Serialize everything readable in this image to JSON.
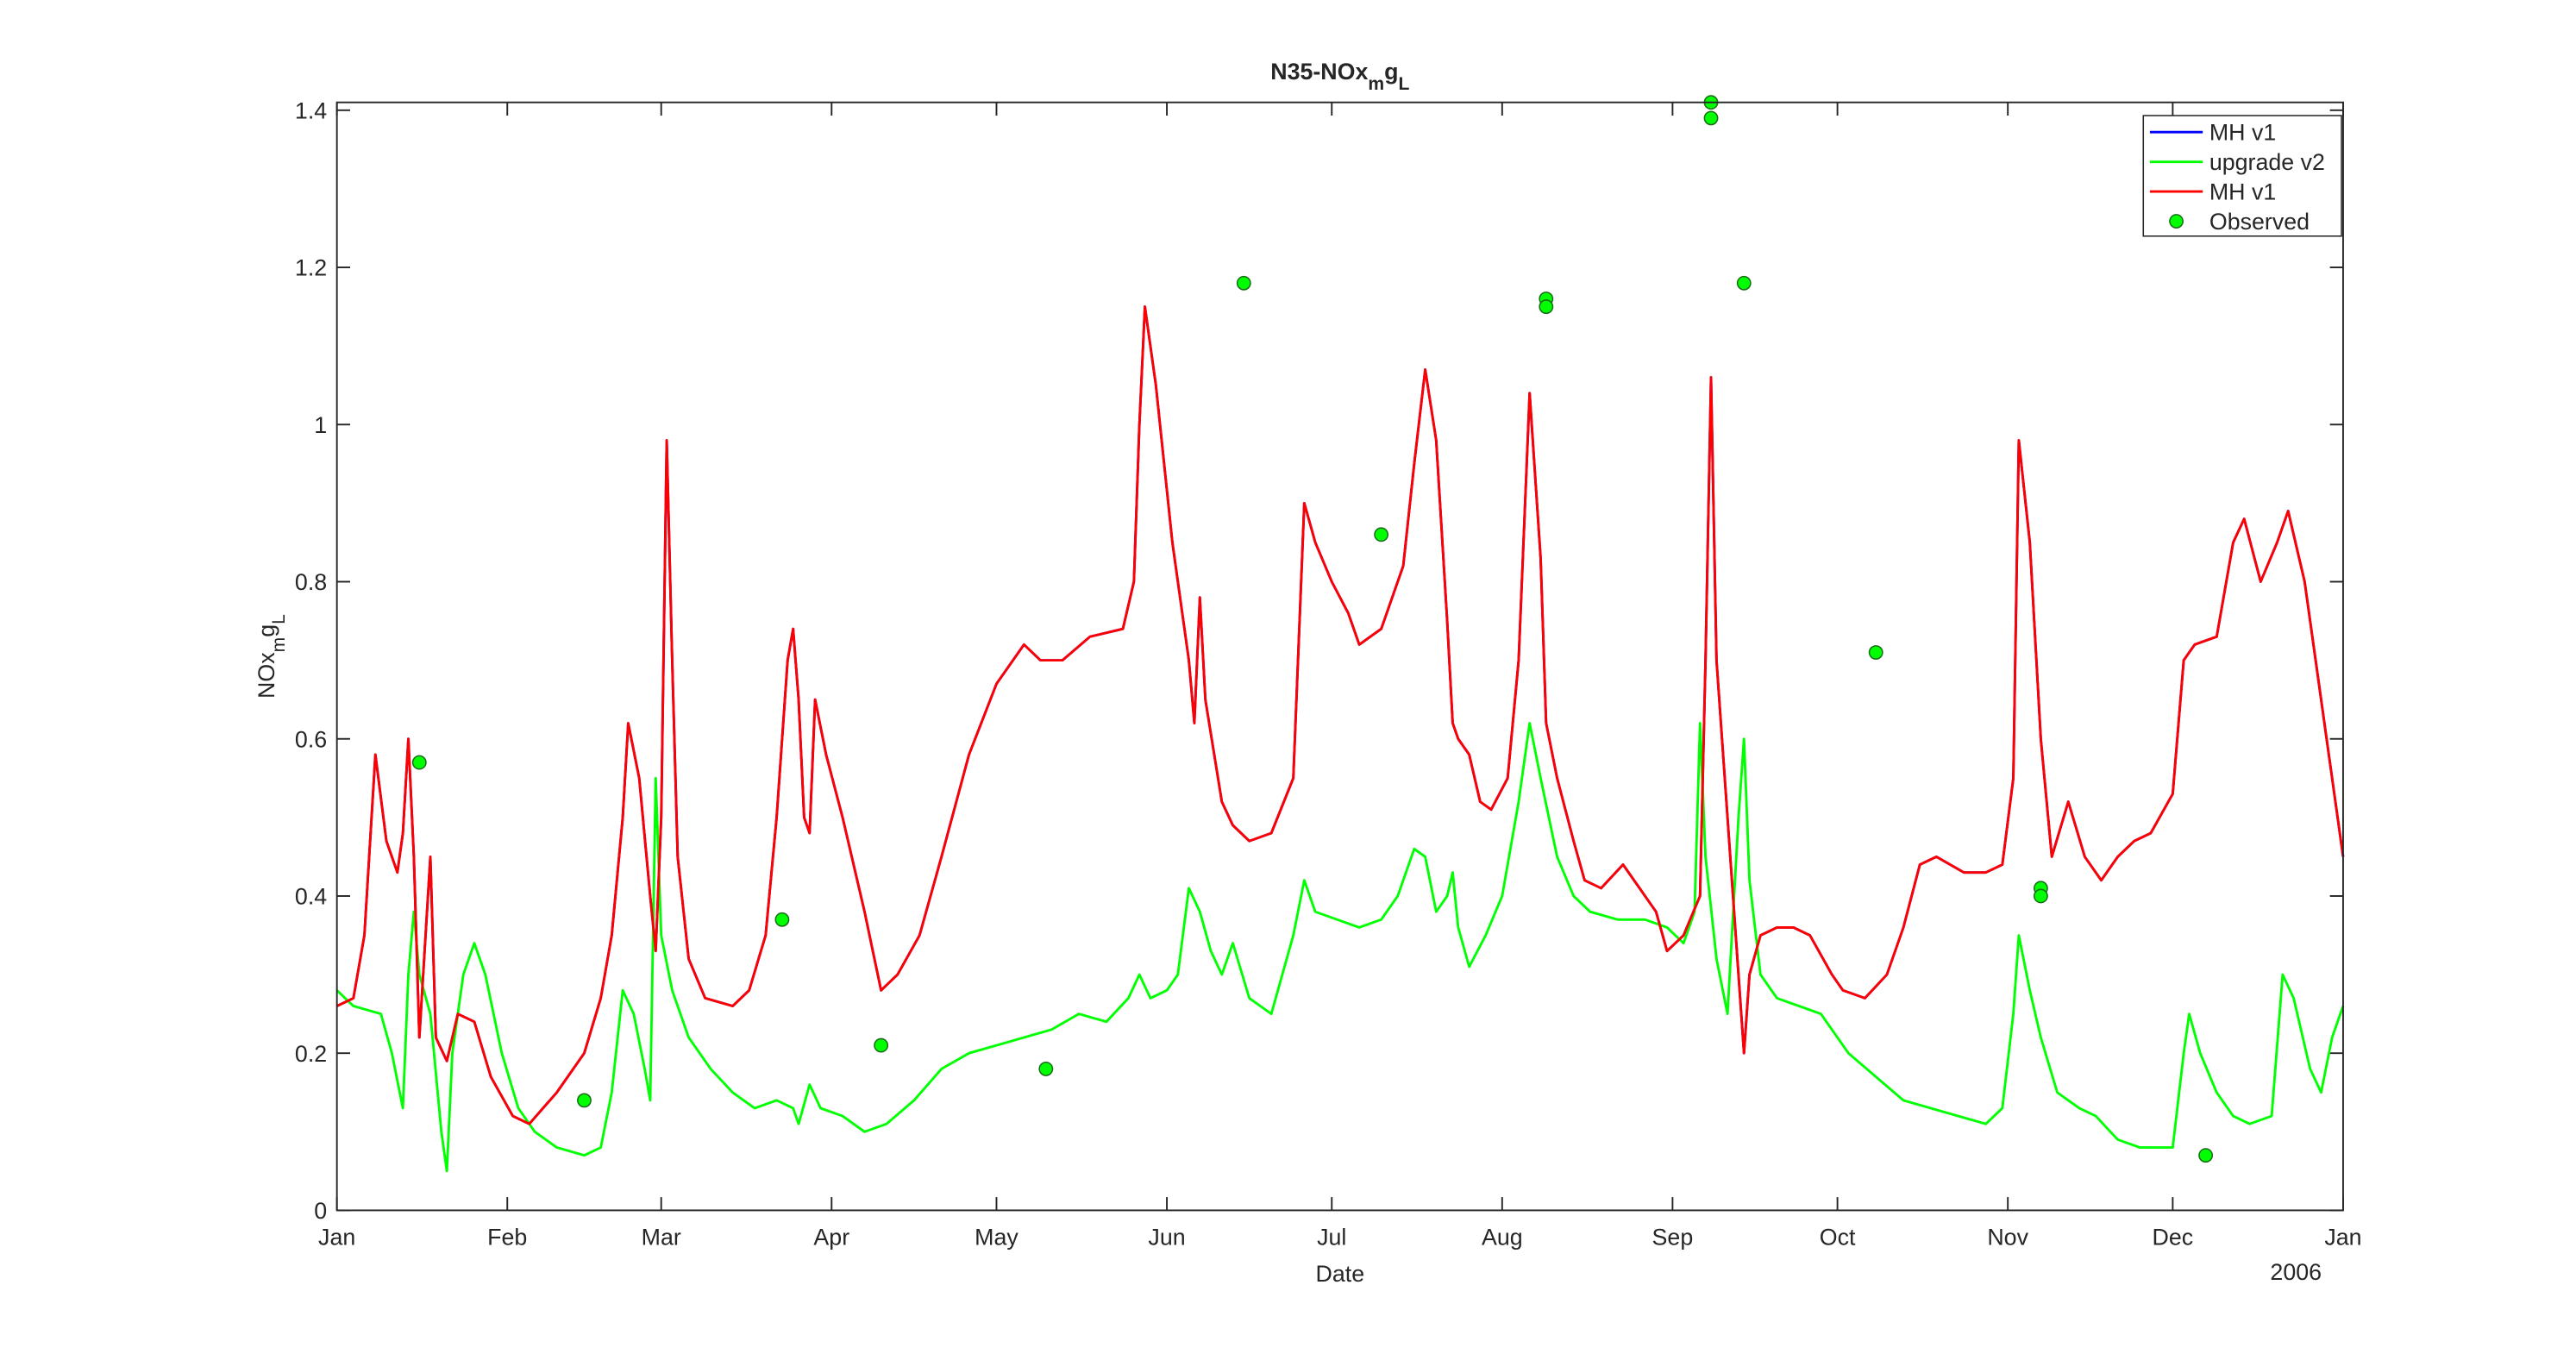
{
  "chart_data": {
    "type": "line",
    "title": [
      {
        "text": "N35-NOx"
      },
      {
        "text": "m",
        "sub": true
      },
      {
        "text": "g"
      },
      {
        "text": "L",
        "sub": true
      }
    ],
    "y_label": [
      {
        "text": "NOx"
      },
      {
        "text": "m",
        "sub": true
      },
      {
        "text": "g"
      },
      {
        "text": "L",
        "sub": true
      }
    ],
    "x_label": "Date",
    "x_year": "2006",
    "xlim": [
      0,
      365
    ],
    "xticks": [
      {
        "value": 0,
        "label": "Jan"
      },
      {
        "value": 31,
        "label": "Feb"
      },
      {
        "value": 59,
        "label": "Mar"
      },
      {
        "value": 90,
        "label": "Apr"
      },
      {
        "value": 120,
        "label": "May"
      },
      {
        "value": 151,
        "label": "Jun"
      },
      {
        "value": 181,
        "label": "Jul"
      },
      {
        "value": 212,
        "label": "Aug"
      },
      {
        "value": 243,
        "label": "Sep"
      },
      {
        "value": 273,
        "label": "Oct"
      },
      {
        "value": 304,
        "label": "Nov"
      },
      {
        "value": 334,
        "label": "Dec"
      },
      {
        "value": 365,
        "label": "Jan"
      }
    ],
    "ylim": [
      0,
      1.41
    ],
    "yticks": [
      0,
      0.2,
      0.4,
      0.6,
      0.8,
      1,
      1.2,
      1.4
    ],
    "legend": "top-right",
    "series": [
      {
        "name": "MH v1",
        "color": "#0000ff",
        "x": [
          0,
          3,
          5,
          7,
          9,
          11,
          12,
          13,
          14,
          15,
          17,
          18,
          20,
          22,
          25,
          28,
          32,
          35,
          40,
          45,
          48,
          50,
          52,
          53,
          55,
          57,
          58,
          59,
          60,
          61,
          62,
          64,
          67,
          72,
          75,
          78,
          80,
          82,
          83,
          84,
          85,
          86,
          87,
          89,
          92,
          96,
          99,
          102,
          106,
          110,
          115,
          120,
          125,
          128,
          132,
          137,
          143,
          145,
          146,
          147,
          149,
          152,
          155,
          156,
          157,
          158,
          161,
          163,
          166,
          170,
          174,
          176,
          178,
          181,
          184,
          186,
          190,
          194,
          196,
          198,
          200,
          202,
          203,
          204,
          206,
          208,
          210,
          213,
          215,
          217,
          219,
          220,
          222,
          225,
          227,
          230,
          234,
          236,
          240,
          242,
          245,
          248,
          249,
          250,
          251,
          252,
          254,
          256,
          257,
          259,
          262,
          265,
          268,
          272,
          274,
          278,
          282,
          285,
          288,
          291,
          296,
          300,
          303,
          305,
          306,
          308,
          310,
          312,
          315,
          318,
          321,
          324,
          327,
          330,
          334,
          336,
          338,
          342,
          345,
          347,
          350,
          353,
          355,
          358,
          360,
          362,
          365
        ],
        "values": [
          0.26,
          0.27,
          0.35,
          0.58,
          0.47,
          0.43,
          0.48,
          0.6,
          0.45,
          0.22,
          0.45,
          0.22,
          0.19,
          0.25,
          0.24,
          0.17,
          0.12,
          0.11,
          0.15,
          0.2,
          0.27,
          0.35,
          0.5,
          0.62,
          0.55,
          0.4,
          0.33,
          0.5,
          0.98,
          0.7,
          0.45,
          0.32,
          0.27,
          0.26,
          0.28,
          0.35,
          0.5,
          0.7,
          0.74,
          0.65,
          0.5,
          0.48,
          0.65,
          0.58,
          0.5,
          0.38,
          0.28,
          0.3,
          0.35,
          0.45,
          0.58,
          0.67,
          0.72,
          0.7,
          0.7,
          0.73,
          0.74,
          0.8,
          1.0,
          1.15,
          1.05,
          0.85,
          0.7,
          0.62,
          0.78,
          0.65,
          0.52,
          0.49,
          0.47,
          0.48,
          0.55,
          0.9,
          0.85,
          0.8,
          0.76,
          0.72,
          0.74,
          0.82,
          0.95,
          1.07,
          0.98,
          0.75,
          0.62,
          0.6,
          0.58,
          0.52,
          0.51,
          0.55,
          0.7,
          1.04,
          0.83,
          0.62,
          0.55,
          0.47,
          0.42,
          0.41,
          0.44,
          0.42,
          0.38,
          0.33,
          0.35,
          0.4,
          0.7,
          1.06,
          0.7,
          0.6,
          0.4,
          0.2,
          0.3,
          0.35,
          0.36,
          0.36,
          0.35,
          0.3,
          0.28,
          0.27,
          0.3,
          0.36,
          0.44,
          0.45,
          0.43,
          0.43,
          0.44,
          0.55,
          0.98,
          0.85,
          0.6,
          0.45,
          0.52,
          0.45,
          0.42,
          0.45,
          0.47,
          0.48,
          0.53,
          0.7,
          0.72,
          0.73,
          0.85,
          0.88,
          0.8,
          0.85,
          0.89,
          0.8,
          0.7,
          0.6,
          0.45
        ]
      },
      {
        "name": "upgrade v2",
        "color": "#00ff00",
        "x": [
          0,
          3,
          8,
          10,
          12,
          13,
          14,
          15,
          17,
          19,
          20,
          21,
          23,
          25,
          27,
          30,
          33,
          36,
          40,
          45,
          48,
          50,
          52,
          54,
          56,
          57,
          58,
          59,
          61,
          64,
          68,
          72,
          76,
          80,
          83,
          84,
          86,
          88,
          92,
          96,
          100,
          105,
          110,
          115,
          120,
          125,
          130,
          135,
          140,
          144,
          146,
          148,
          151,
          153,
          155,
          157,
          159,
          161,
          163,
          166,
          170,
          174,
          176,
          178,
          182,
          186,
          190,
          193,
          196,
          198,
          200,
          202,
          203,
          204,
          206,
          209,
          212,
          215,
          217,
          219,
          222,
          225,
          228,
          233,
          238,
          242,
          245,
          247,
          248,
          249,
          251,
          253,
          255,
          256,
          257,
          259,
          262,
          266,
          270,
          275,
          280,
          285,
          290,
          295,
          300,
          303,
          305,
          306,
          308,
          310,
          313,
          317,
          320,
          324,
          328,
          332,
          334,
          336,
          337,
          339,
          342,
          345,
          348,
          352,
          354,
          356,
          359,
          361,
          363,
          365
        ],
        "values": [
          0.28,
          0.26,
          0.25,
          0.2,
          0.13,
          0.3,
          0.38,
          0.3,
          0.25,
          0.1,
          0.05,
          0.2,
          0.3,
          0.34,
          0.3,
          0.2,
          0.13,
          0.1,
          0.08,
          0.07,
          0.08,
          0.15,
          0.28,
          0.25,
          0.18,
          0.14,
          0.55,
          0.35,
          0.28,
          0.22,
          0.18,
          0.15,
          0.13,
          0.14,
          0.13,
          0.11,
          0.16,
          0.13,
          0.12,
          0.1,
          0.11,
          0.14,
          0.18,
          0.2,
          0.21,
          0.22,
          0.23,
          0.25,
          0.24,
          0.27,
          0.3,
          0.27,
          0.28,
          0.3,
          0.41,
          0.38,
          0.33,
          0.3,
          0.34,
          0.27,
          0.25,
          0.35,
          0.42,
          0.38,
          0.37,
          0.36,
          0.37,
          0.4,
          0.46,
          0.45,
          0.38,
          0.4,
          0.43,
          0.36,
          0.31,
          0.35,
          0.4,
          0.52,
          0.62,
          0.55,
          0.45,
          0.4,
          0.38,
          0.37,
          0.37,
          0.36,
          0.34,
          0.38,
          0.62,
          0.45,
          0.32,
          0.25,
          0.5,
          0.6,
          0.42,
          0.3,
          0.27,
          0.26,
          0.25,
          0.2,
          0.17,
          0.14,
          0.13,
          0.12,
          0.11,
          0.13,
          0.25,
          0.35,
          0.28,
          0.22,
          0.15,
          0.13,
          0.12,
          0.09,
          0.08,
          0.08,
          0.08,
          0.2,
          0.25,
          0.2,
          0.15,
          0.12,
          0.11,
          0.12,
          0.3,
          0.27,
          0.18,
          0.15,
          0.22,
          0.26
        ]
      },
      {
        "name": "MH v1",
        "color": "#ff0000",
        "x": [
          0,
          3,
          5,
          7,
          9,
          11,
          12,
          13,
          14,
          15,
          17,
          18,
          20,
          22,
          25,
          28,
          32,
          35,
          40,
          45,
          48,
          50,
          52,
          53,
          55,
          57,
          58,
          59,
          60,
          61,
          62,
          64,
          67,
          72,
          75,
          78,
          80,
          82,
          83,
          84,
          85,
          86,
          87,
          89,
          92,
          96,
          99,
          102,
          106,
          110,
          115,
          120,
          125,
          128,
          132,
          137,
          143,
          145,
          146,
          147,
          149,
          152,
          155,
          156,
          157,
          158,
          161,
          163,
          166,
          170,
          174,
          176,
          178,
          181,
          184,
          186,
          190,
          194,
          196,
          198,
          200,
          202,
          203,
          204,
          206,
          208,
          210,
          213,
          215,
          217,
          219,
          220,
          222,
          225,
          227,
          230,
          234,
          236,
          240,
          242,
          245,
          248,
          249,
          250,
          251,
          252,
          254,
          256,
          257,
          259,
          262,
          265,
          268,
          272,
          274,
          278,
          282,
          285,
          288,
          291,
          296,
          300,
          303,
          305,
          306,
          308,
          310,
          312,
          315,
          318,
          321,
          324,
          327,
          330,
          334,
          336,
          338,
          342,
          345,
          347,
          350,
          353,
          355,
          358,
          360,
          362,
          365
        ],
        "values": [
          0.26,
          0.27,
          0.35,
          0.58,
          0.47,
          0.43,
          0.48,
          0.6,
          0.45,
          0.22,
          0.45,
          0.22,
          0.19,
          0.25,
          0.24,
          0.17,
          0.12,
          0.11,
          0.15,
          0.2,
          0.27,
          0.35,
          0.5,
          0.62,
          0.55,
          0.4,
          0.33,
          0.5,
          0.98,
          0.7,
          0.45,
          0.32,
          0.27,
          0.26,
          0.28,
          0.35,
          0.5,
          0.7,
          0.74,
          0.65,
          0.5,
          0.48,
          0.65,
          0.58,
          0.5,
          0.38,
          0.28,
          0.3,
          0.35,
          0.45,
          0.58,
          0.67,
          0.72,
          0.7,
          0.7,
          0.73,
          0.74,
          0.8,
          1.0,
          1.15,
          1.05,
          0.85,
          0.7,
          0.62,
          0.78,
          0.65,
          0.52,
          0.49,
          0.47,
          0.48,
          0.55,
          0.9,
          0.85,
          0.8,
          0.76,
          0.72,
          0.74,
          0.82,
          0.95,
          1.07,
          0.98,
          0.75,
          0.62,
          0.6,
          0.58,
          0.52,
          0.51,
          0.55,
          0.7,
          1.04,
          0.83,
          0.62,
          0.55,
          0.47,
          0.42,
          0.41,
          0.44,
          0.42,
          0.38,
          0.33,
          0.35,
          0.4,
          0.7,
          1.06,
          0.7,
          0.6,
          0.4,
          0.2,
          0.3,
          0.35,
          0.36,
          0.36,
          0.35,
          0.3,
          0.28,
          0.27,
          0.3,
          0.36,
          0.44,
          0.45,
          0.43,
          0.43,
          0.44,
          0.55,
          0.98,
          0.85,
          0.6,
          0.45,
          0.52,
          0.45,
          0.42,
          0.45,
          0.47,
          0.48,
          0.53,
          0.7,
          0.72,
          0.73,
          0.85,
          0.88,
          0.8,
          0.85,
          0.89,
          0.8,
          0.7,
          0.6,
          0.45
        ]
      },
      {
        "name": "Observed",
        "color": "#00ff00",
        "marker": "circle",
        "x": [
          15,
          45,
          81,
          99,
          129,
          165,
          190,
          220,
          220,
          250,
          250,
          256,
          280,
          310,
          310,
          340
        ],
        "values": [
          0.57,
          0.14,
          0.37,
          0.21,
          0.18,
          1.18,
          0.86,
          1.16,
          1.15,
          1.41,
          1.39,
          1.18,
          0.71,
          0.41,
          0.4,
          0.07
        ]
      }
    ]
  }
}
